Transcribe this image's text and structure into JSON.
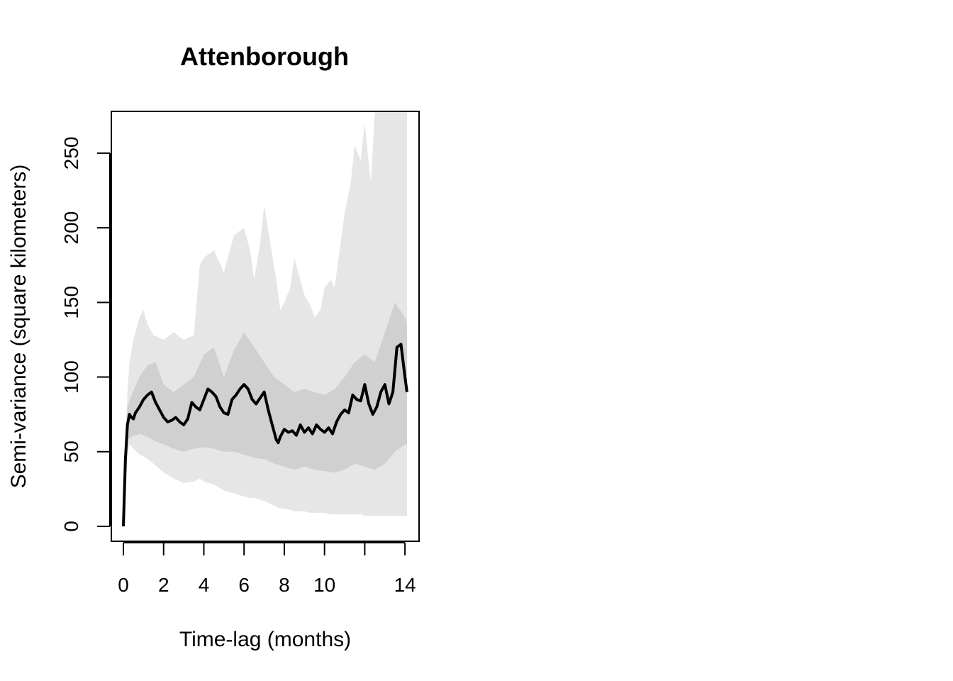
{
  "chart_data": {
    "type": "line",
    "title": "Attenborough",
    "xlabel": "Time-lag (months)",
    "ylabel": "Semi-variance (square kilometers)",
    "xlim": [
      -0.6,
      14.7
    ],
    "ylim": [
      -10,
      278
    ],
    "x_ticks": [
      0,
      2,
      4,
      6,
      8,
      10,
      12,
      14
    ],
    "x_tick_labels": [
      "0",
      "2",
      "4",
      "6",
      "8",
      "10",
      "",
      "14"
    ],
    "y_ticks": [
      0,
      50,
      100,
      150,
      200,
      250
    ],
    "y_tick_labels": [
      "0",
      "50",
      "100",
      "150",
      "200",
      "250"
    ],
    "grid": false,
    "colors": {
      "outer_band": "#e6e6e6",
      "inner_band": "#d0d0d0",
      "line": "#000000"
    },
    "series": [
      {
        "x": [
          0,
          0.1,
          0.2,
          0.3,
          0.4,
          0.5,
          0.6,
          0.8,
          1.0,
          1.2,
          1.4,
          1.6,
          1.8,
          2.0,
          2.2,
          2.4,
          2.6,
          2.8,
          3.0,
          3.2,
          3.4,
          3.6,
          3.8,
          4.0,
          4.2,
          4.4,
          4.6,
          4.8,
          5.0,
          5.2,
          5.4,
          5.6,
          5.8,
          6.0,
          6.2,
          6.4,
          6.6,
          6.8,
          7.0,
          7.2,
          7.4,
          7.6,
          7.7,
          7.8,
          8.0,
          8.2,
          8.4,
          8.6,
          8.8,
          9.0,
          9.2,
          9.4,
          9.6,
          9.8,
          10.0,
          10.2,
          10.4,
          10.6,
          10.8,
          11.0,
          11.2,
          11.4,
          11.6,
          11.8,
          12.0,
          12.2,
          12.4,
          12.6,
          12.8,
          13.0,
          13.2,
          13.4,
          13.6,
          13.8,
          14.0,
          14.1
        ],
        "y": [
          0,
          45,
          68,
          75,
          73,
          72,
          76,
          80,
          85,
          88,
          90,
          83,
          78,
          73,
          70,
          71,
          73,
          70,
          68,
          72,
          83,
          80,
          78,
          85,
          92,
          90,
          87,
          80,
          76,
          75,
          85,
          88,
          92,
          95,
          92,
          85,
          82,
          86,
          90,
          78,
          68,
          58,
          56,
          60,
          65,
          63,
          64,
          61,
          68,
          63,
          66,
          62,
          68,
          65,
          63,
          66,
          62,
          70,
          75,
          78,
          76,
          88,
          85,
          84,
          95,
          82,
          75,
          80,
          90,
          95,
          82,
          90,
          120,
          122,
          100,
          90
        ]
      }
    ],
    "bands": [
      {
        "x": [
          0,
          0.1,
          0.2,
          0.3,
          0.5,
          0.8,
          1.0,
          1.2,
          1.5,
          2.0,
          2.5,
          3.0,
          3.5,
          3.8,
          4.0,
          4.5,
          5.0,
          5.5,
          6.0,
          6.3,
          6.5,
          6.8,
          7.0,
          7.3,
          7.6,
          7.8,
          8.0,
          8.3,
          8.5,
          8.7,
          9.0,
          9.3,
          9.5,
          9.8,
          10.0,
          10.3,
          10.5,
          10.8,
          11.0,
          11.3,
          11.5,
          11.8,
          12.0,
          12.3,
          12.5,
          12.8,
          13.0,
          13.2,
          13.5,
          13.8,
          14.0,
          14.1
        ],
        "lower": [
          0,
          30,
          48,
          55,
          52,
          48,
          47,
          45,
          42,
          36,
          32,
          29,
          30,
          32,
          30,
          28,
          24,
          22,
          20,
          19,
          19,
          18,
          17,
          15,
          13,
          12,
          12,
          11,
          10,
          10,
          10,
          9,
          9,
          9,
          9,
          8,
          8,
          8,
          8,
          8,
          8,
          8,
          7,
          7,
          7,
          7,
          7,
          7,
          7,
          7,
          7,
          7
        ],
        "upper": [
          0,
          55,
          90,
          110,
          125,
          140,
          145,
          135,
          128,
          125,
          130,
          125,
          128,
          175,
          180,
          185,
          170,
          195,
          200,
          185,
          165,
          190,
          215,
          190,
          165,
          145,
          150,
          160,
          180,
          170,
          155,
          148,
          140,
          145,
          160,
          165,
          160,
          190,
          210,
          230,
          255,
          245,
          270,
          230,
          280,
          300,
          310,
          280,
          300,
          320,
          300,
          300
        ]
      },
      {
        "x": [
          0,
          0.2,
          0.4,
          0.8,
          1.2,
          1.6,
          2.0,
          2.5,
          3.0,
          3.5,
          4.0,
          4.5,
          5.0,
          5.5,
          6.0,
          6.5,
          7.0,
          7.5,
          8.0,
          8.5,
          9.0,
          9.5,
          10.0,
          10.5,
          11.0,
          11.5,
          12.0,
          12.5,
          13.0,
          13.5,
          14.0,
          14.1
        ],
        "lower": [
          0,
          58,
          60,
          62,
          60,
          57,
          55,
          52,
          50,
          52,
          53,
          52,
          50,
          50,
          48,
          46,
          45,
          42,
          40,
          38,
          40,
          38,
          37,
          36,
          38,
          42,
          40,
          38,
          42,
          50,
          55,
          55
        ],
        "upper": [
          0,
          80,
          88,
          100,
          108,
          110,
          95,
          90,
          95,
          100,
          115,
          120,
          100,
          118,
          130,
          120,
          110,
          100,
          95,
          90,
          92,
          90,
          88,
          92,
          100,
          110,
          115,
          110,
          130,
          150,
          140,
          135
        ]
      }
    ]
  }
}
